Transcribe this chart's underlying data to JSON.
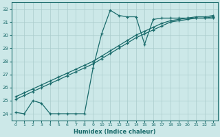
{
  "xlabel": "Humidex (Indice chaleur)",
  "bg_color": "#cce8e8",
  "grid_color": "#aacccc",
  "line_color": "#1a6b6b",
  "xlim": [
    -0.5,
    23.5
  ],
  "ylim": [
    23.5,
    32.5
  ],
  "xticks": [
    0,
    1,
    2,
    3,
    4,
    5,
    6,
    7,
    8,
    9,
    10,
    11,
    12,
    13,
    14,
    15,
    16,
    17,
    18,
    19,
    20,
    21,
    22,
    23
  ],
  "yticks": [
    24,
    25,
    26,
    27,
    28,
    29,
    30,
    31,
    32
  ],
  "line1_x": [
    0,
    1,
    2,
    3,
    4,
    5,
    6,
    7,
    8,
    9,
    10,
    11,
    12,
    13,
    14,
    15,
    16,
    17,
    18,
    19,
    20,
    21,
    22,
    23
  ],
  "line1_y": [
    25.3,
    25.6,
    25.9,
    26.2,
    26.5,
    26.8,
    27.1,
    27.4,
    27.7,
    28.0,
    28.4,
    28.8,
    29.2,
    29.6,
    30.0,
    30.3,
    30.6,
    30.9,
    31.1,
    31.2,
    31.3,
    31.4,
    31.4,
    31.5
  ],
  "line2_x": [
    0,
    1,
    2,
    3,
    4,
    5,
    6,
    7,
    8,
    9,
    10,
    11,
    12,
    13,
    14,
    15,
    16,
    17,
    18,
    19,
    20,
    21,
    22,
    23
  ],
  "line2_y": [
    25.1,
    25.4,
    25.7,
    26.0,
    26.3,
    26.6,
    26.9,
    27.2,
    27.5,
    27.8,
    28.2,
    28.6,
    29.0,
    29.4,
    29.8,
    30.1,
    30.4,
    30.7,
    31.0,
    31.1,
    31.2,
    31.3,
    31.3,
    31.4
  ],
  "line3_x": [
    0,
    1,
    2,
    3,
    4,
    5,
    6,
    7,
    8,
    9,
    10,
    11,
    12,
    13,
    14,
    15,
    16,
    17,
    18,
    19,
    20,
    21,
    22,
    23
  ],
  "line3_y": [
    24.1,
    24.0,
    25.0,
    24.8,
    24.0,
    24.0,
    24.0,
    24.0,
    24.0,
    27.5,
    30.1,
    31.9,
    31.5,
    31.4,
    31.4,
    29.3,
    31.2,
    31.3,
    31.3,
    31.3,
    31.3,
    31.3,
    31.3,
    31.3
  ]
}
